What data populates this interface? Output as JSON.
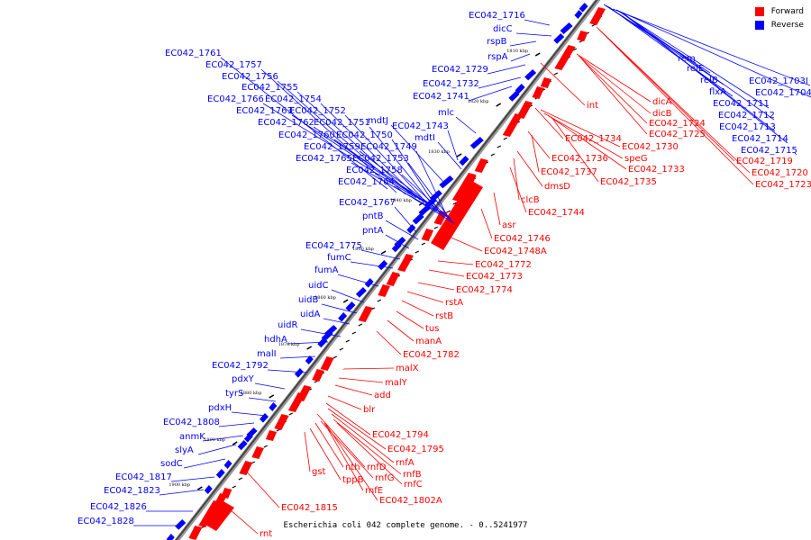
{
  "caption": "Escherichia coli 042 complete genome. - 0..5241977",
  "legend": [
    {
      "label": "Forward",
      "color": "#ff0000"
    },
    {
      "label": "Reverse",
      "color": "#0000ff"
    }
  ],
  "colors": {
    "forward": "#ff0000",
    "reverse": "#0000ff",
    "axis": "#555555"
  },
  "ticks": [
    "1810 kbp",
    "1820 kbp",
    "1830 kbp",
    "1840 kbp",
    "1850 kbp",
    "1860 kbp",
    "1870 kbp",
    "1880 kbp",
    "1890 kbp",
    "1900 kbp"
  ],
  "reverse_labels": [
    "EC042_1716",
    "dicC",
    "rspB",
    "rspA",
    "EC042_1729",
    "EC042_1732",
    "EC042_1741",
    "mlc",
    "EC042_1761",
    "EC042_1757",
    "EC042_1756",
    "EC042_1755",
    "EC042_1766",
    "EC042_1754",
    "EC042_1763",
    "EC042_1752",
    "mdtJ",
    "EC042_1762",
    "EC042_1751",
    "EC042_1743",
    "EC042_1760",
    "EC042_1750",
    "mdtI",
    "EC042_1759",
    "EC042_1749",
    "EC042_1765",
    "EC042_1753",
    "EC042_1758",
    "EC042_1764",
    "EC042_1767",
    "pntB",
    "pntA",
    "EC042_1775",
    "fumC",
    "fumA",
    "uidC",
    "uidB",
    "uidA",
    "uidR",
    "hdhA",
    "malI",
    "EC042_1792",
    "pdxY",
    "tyrS",
    "pdxH",
    "EC042_1808",
    "anmK",
    "slyA",
    "sodC",
    "EC042_1817",
    "EC042_1823",
    "EC042_1826",
    "EC042_1828",
    "rem",
    "relE",
    "relB",
    "flxA",
    "EC042_1703I",
    "EC042_1704",
    "EC042_1711",
    "EC042_1712",
    "EC042_1713",
    "EC042_1714",
    "EC042_1715"
  ],
  "forward_labels": [
    "int",
    "dicA",
    "dicB",
    "EC042_1724",
    "EC042_1725",
    "EC042_1734",
    "EC042_1730",
    "EC042_1736",
    "speG",
    "EC042_1733",
    "EC042_1737",
    "EC042_1735",
    "dmsD",
    "clcB",
    "EC042_1744",
    "asr",
    "EC042_1746",
    "EC042_1748A",
    "EC042_1772",
    "EC042_1773",
    "EC042_1774",
    "rstA",
    "rstB",
    "tus",
    "manA",
    "EC042_1782",
    "malX",
    "malY",
    "add",
    "blr",
    "EC042_1794",
    "EC042_1795",
    "rnfA",
    "rnfB",
    "rnfC",
    "rnfD",
    "nth",
    "rnfG",
    "gst",
    "tppB",
    "rnfE",
    "EC042_1802A",
    "EC042_1815",
    "rnt",
    "EC042_1719",
    "EC042_1720",
    "EC042_1723"
  ]
}
